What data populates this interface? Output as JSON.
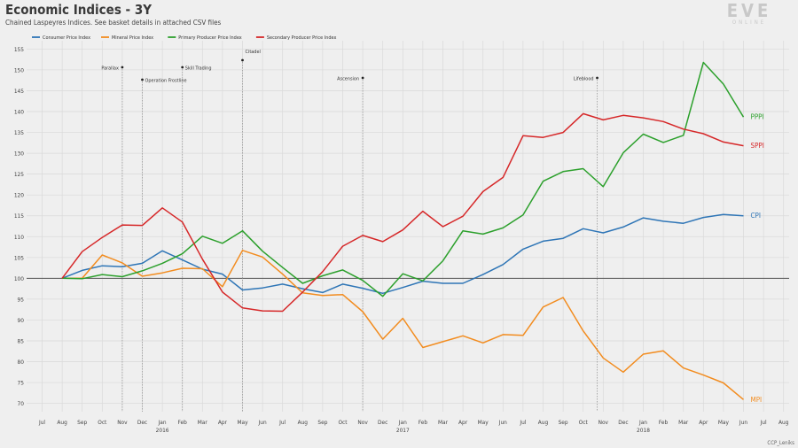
{
  "title": "Economic Indices - 3Y",
  "subtitle": "Chained Laspeyres Indices. See basket details in attached CSV files",
  "brand": {
    "logo": "EVE",
    "sub": "ONLINE"
  },
  "credit": "CCP_Leniks",
  "chart_data": {
    "type": "line",
    "title": "Economic Indices - 3Y",
    "xlabel": "",
    "ylabel": "",
    "ylim": [
      68,
      157
    ],
    "yticks": [
      70,
      75,
      80,
      85,
      90,
      95,
      100,
      105,
      110,
      115,
      120,
      125,
      130,
      135,
      140,
      145,
      150,
      155
    ],
    "x_tick_labels": [
      "Jul",
      "Aug",
      "Sep",
      "Oct",
      "Nov",
      "Dec",
      "Jan",
      "Feb",
      "Mar",
      "Apr",
      "May",
      "Jun",
      "Jul",
      "Aug",
      "Sep",
      "Oct",
      "Nov",
      "Dec",
      "Jan",
      "Feb",
      "Mar",
      "Apr",
      "May",
      "Jun",
      "Jul",
      "Aug",
      "Sep",
      "Oct",
      "Nov",
      "Dec",
      "Jan",
      "Feb",
      "Mar",
      "Apr",
      "May",
      "Jun",
      "Jul",
      "Aug"
    ],
    "year_labels": [
      {
        "after_tick": 6,
        "label": "2016"
      },
      {
        "after_tick": 18,
        "label": "2017"
      },
      {
        "after_tick": 30,
        "label": "2018"
      }
    ],
    "baseline": 100,
    "grid": true,
    "legend": "top-left",
    "series": [
      {
        "name": "Consumer Price Index",
        "end_label": "CPI",
        "color": "#2e75b6",
        "values": [
          null,
          100,
          101.9,
          103.0,
          102.8,
          103.6,
          106.6,
          104.4,
          102.2,
          101.0,
          97.2,
          97.7,
          98.6,
          97.5,
          96.6,
          98.6,
          97.6,
          96.4,
          97.8,
          99.3,
          98.8,
          98.8,
          100.9,
          103.3,
          107.0,
          108.9,
          109.6,
          111.9,
          110.9,
          112.3,
          114.5,
          113.7,
          113.2,
          114.6,
          115.3,
          115.0
        ]
      },
      {
        "name": "Mineral Price Index",
        "end_label": "MPI",
        "color": "#f28c1f",
        "values": [
          null,
          100,
          100.0,
          105.6,
          103.7,
          100.5,
          101.3,
          102.4,
          102.3,
          98.0,
          106.7,
          105.1,
          101.0,
          96.5,
          95.9,
          96.1,
          92.0,
          85.4,
          90.4,
          83.4,
          84.8,
          86.2,
          84.5,
          86.5,
          86.3,
          93.1,
          95.4,
          87.4,
          80.9,
          77.5,
          81.8,
          82.6,
          78.5,
          76.8,
          74.9,
          70.9
        ]
      },
      {
        "name": "Primary Producer Price Index",
        "end_label": "PPPI",
        "color": "#2ca02c",
        "values": [
          null,
          100,
          99.9,
          100.9,
          100.4,
          101.8,
          103.6,
          105.9,
          110.1,
          108.4,
          111.4,
          106.5,
          102.6,
          98.8,
          100.6,
          102.0,
          99.5,
          95.7,
          101.1,
          99.4,
          104.2,
          111.4,
          110.6,
          112.1,
          115.2,
          123.3,
          125.6,
          126.3,
          122.0,
          130.1,
          134.6,
          132.6,
          134.3,
          151.8,
          146.6,
          138.7
        ]
      },
      {
        "name": "Secondary Producer Price Index",
        "end_label": "SPPI",
        "color": "#d62728",
        "values": [
          null,
          100,
          106.4,
          109.8,
          112.8,
          112.7,
          116.9,
          113.5,
          104.6,
          96.7,
          92.9,
          92.2,
          92.1,
          96.7,
          101.6,
          107.7,
          110.3,
          108.8,
          111.6,
          116.1,
          112.4,
          114.9,
          120.8,
          124.2,
          134.2,
          133.8,
          135.0,
          139.5,
          138.0,
          139.1,
          138.5,
          137.6,
          135.8,
          134.7,
          132.7,
          131.8
        ]
      }
    ],
    "events": [
      {
        "label": "Parallax",
        "x": 4
      },
      {
        "label": "Operation Frostline",
        "x": 5
      },
      {
        "label": "Skill Trading",
        "x": 7
      },
      {
        "label": "Citadel",
        "x": 10
      },
      {
        "label": "Ascension",
        "x": 16
      },
      {
        "label": "Lifeblood",
        "x": 27.7
      }
    ]
  }
}
